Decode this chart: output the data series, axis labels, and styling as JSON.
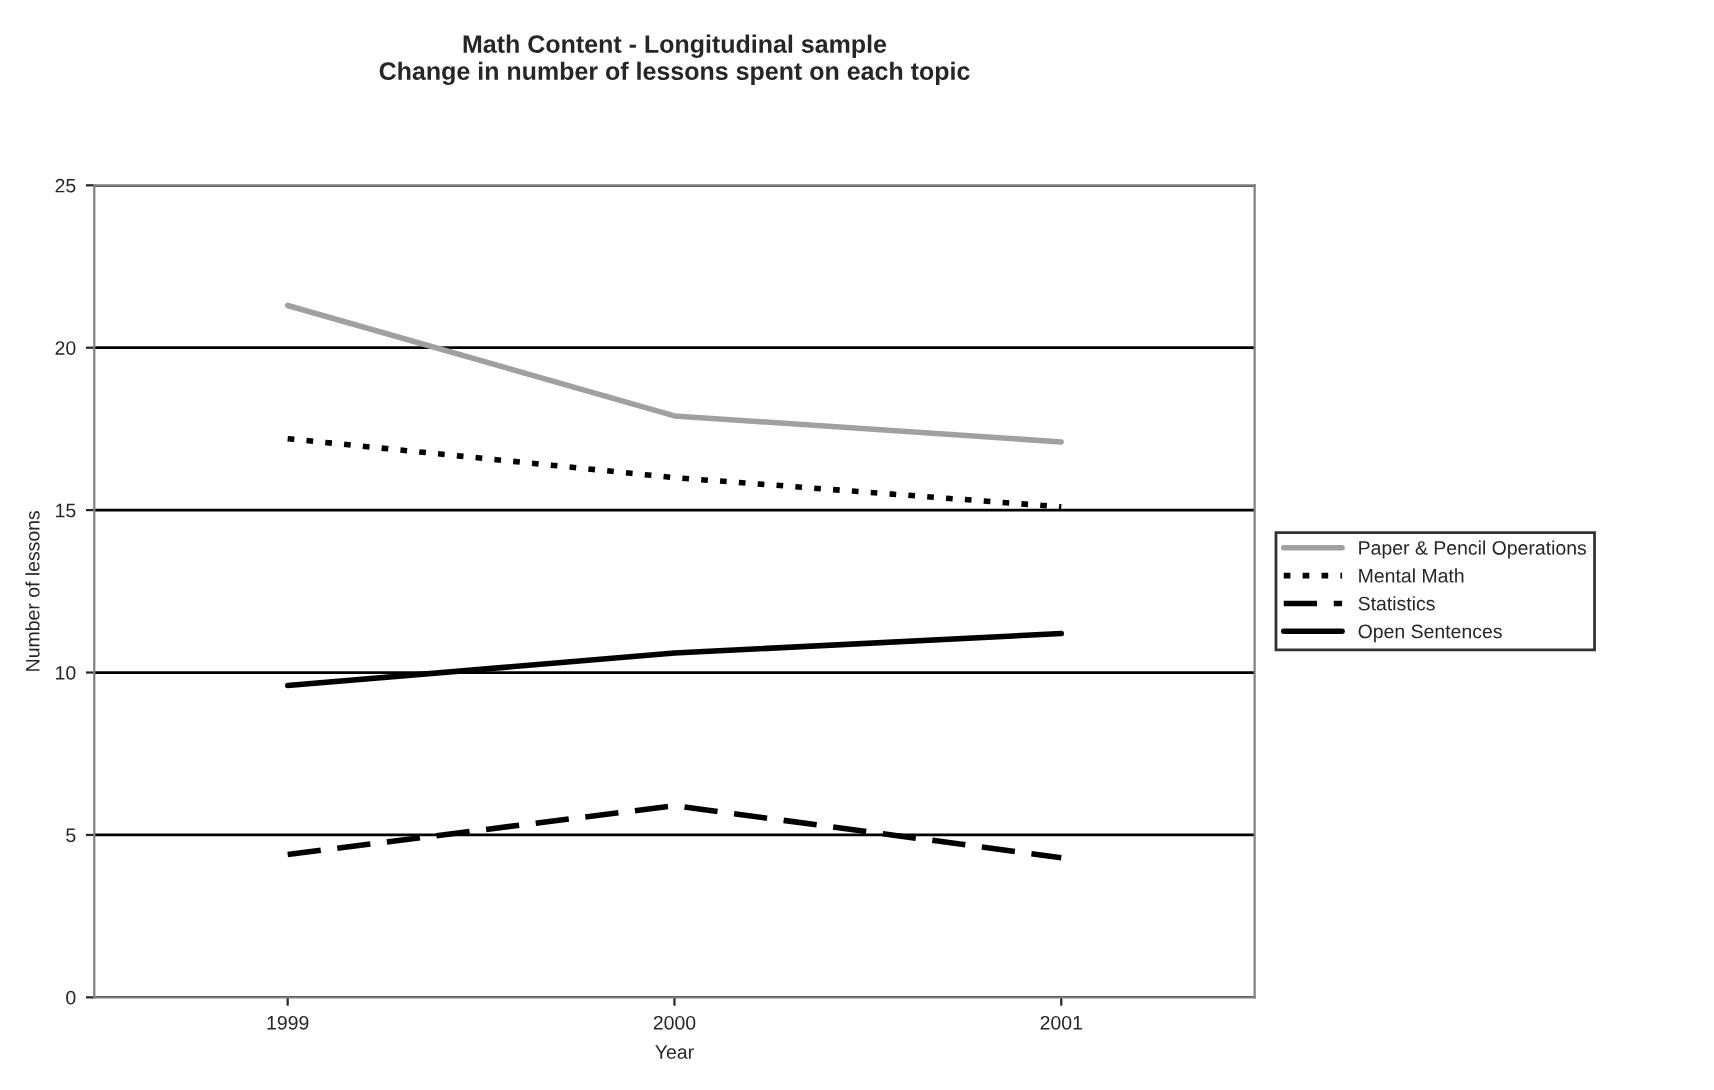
{
  "chart_data": {
    "type": "line",
    "title": "Math Content - Longitudinal sample\nChange in number of lessons spent on each topic",
    "xlabel": "Year",
    "ylabel": "Number of lessons",
    "categories": [
      "1999",
      "2000",
      "2001"
    ],
    "series": [
      {
        "name": "Paper & Pencil Operations",
        "color": "#a0a0a0",
        "line_style": "solid",
        "values": [
          21.3,
          17.9,
          17.1
        ]
      },
      {
        "name": "Mental Math",
        "color": "#000000",
        "line_style": "dotted",
        "values": [
          17.2,
          16.0,
          15.1
        ]
      },
      {
        "name": "Statistics",
        "color": "#000000",
        "line_style": "dashed",
        "values": [
          4.4,
          5.9,
          4.3
        ]
      },
      {
        "name": "Open Sentences",
        "color": "#000000",
        "line_style": "solid",
        "values": [
          9.6,
          10.6,
          11.2
        ]
      }
    ],
    "ylim": [
      0,
      25
    ],
    "yticks": [
      0,
      5,
      10,
      15,
      20,
      25
    ],
    "grid": "y",
    "legend": "right",
    "marker": "none"
  }
}
